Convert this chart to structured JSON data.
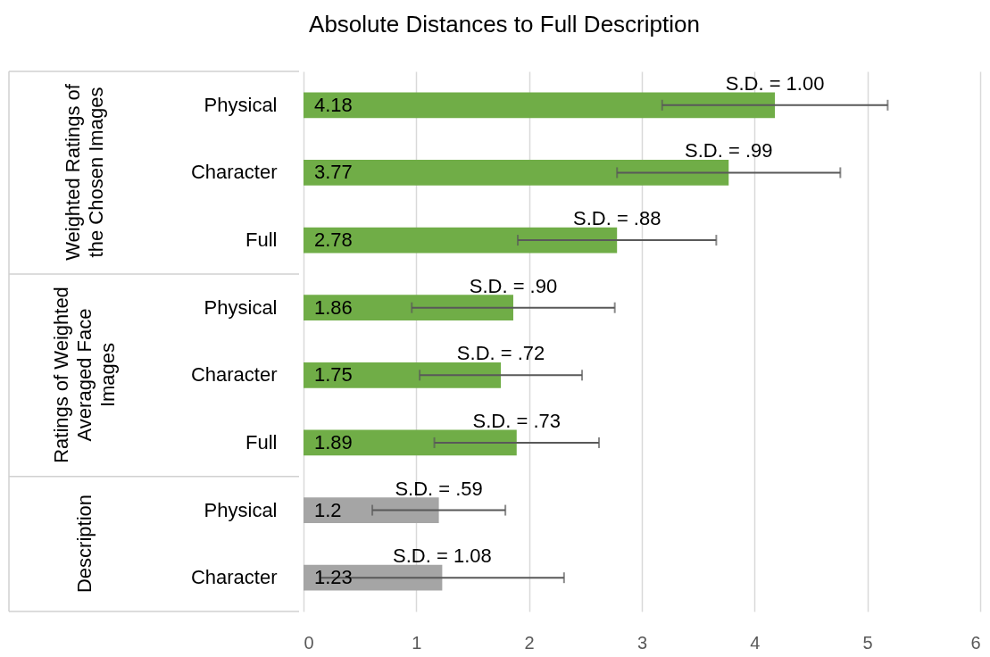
{
  "chart_data": {
    "type": "bar",
    "orientation": "horizontal",
    "title": "Absolute Distances to Full Description",
    "categories": [
      "Physical",
      "Character",
      "Full",
      "Physical",
      "Character",
      "Full",
      "Physical",
      "Character"
    ],
    "values": [
      4.18,
      3.77,
      2.78,
      1.86,
      1.75,
      1.89,
      1.2,
      1.23
    ],
    "errors": [
      1.0,
      0.99,
      0.88,
      0.9,
      0.72,
      0.73,
      0.59,
      1.08
    ],
    "colors": [
      "#70ad47",
      "#70ad47",
      "#70ad47",
      "#70ad47",
      "#70ad47",
      "#70ad47",
      "#a5a5a5",
      "#a5a5a5"
    ],
    "data_labels": true,
    "xlim": [
      0,
      6
    ],
    "xticks": [
      0,
      1,
      2,
      3,
      4,
      5,
      6
    ],
    "grid": "x",
    "annotations": [
      "S.D. = 1.00",
      "S.D. = .99",
      "S.D. = .88",
      "S.D. = .90",
      "S.D. = .72",
      "S.D. = .73",
      "S.D. = .59",
      "S.D. = 1.08",
      "Weighted Ratings of the Chosen Images",
      "Ratings of Weighted Averaged Face Images",
      "Description"
    ]
  }
}
